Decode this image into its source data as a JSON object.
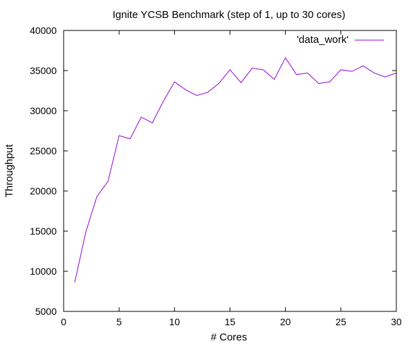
{
  "chart_data": {
    "type": "line",
    "title": "Ignite YCSB Benchmark (step of 1, up to 30 cores)",
    "xlabel": "# Cores",
    "ylabel": "Throughput",
    "xlim": [
      0,
      30
    ],
    "ylim": [
      5000,
      40000
    ],
    "xticks": [
      0,
      5,
      10,
      15,
      20,
      25,
      30
    ],
    "xtick_labels": [
      "0",
      "5",
      "10",
      "15",
      "20",
      "25",
      "30"
    ],
    "yticks": [
      5000,
      10000,
      15000,
      20000,
      25000,
      30000,
      35000,
      40000
    ],
    "ytick_labels": [
      "5000",
      "10000",
      "15000",
      "20000",
      "25000",
      "30000",
      "35000",
      "40000"
    ],
    "grid": false,
    "legend_position": "top-right",
    "series": [
      {
        "name": "'data_work'",
        "color": "#9400d3",
        "x": [
          1,
          2,
          3,
          4,
          5,
          6,
          7,
          8,
          9,
          10,
          11,
          12,
          13,
          14,
          15,
          16,
          17,
          18,
          19,
          20,
          21,
          22,
          23,
          24,
          25,
          26,
          27,
          28,
          29,
          30
        ],
        "y": [
          8600,
          14900,
          19300,
          21200,
          26900,
          26500,
          29200,
          28500,
          31200,
          33600,
          32600,
          31900,
          32300,
          33400,
          35100,
          33500,
          35300,
          35100,
          33900,
          36600,
          34500,
          34700,
          33400,
          33600,
          35100,
          34900,
          35600,
          34700,
          34200,
          34700
        ]
      }
    ]
  }
}
